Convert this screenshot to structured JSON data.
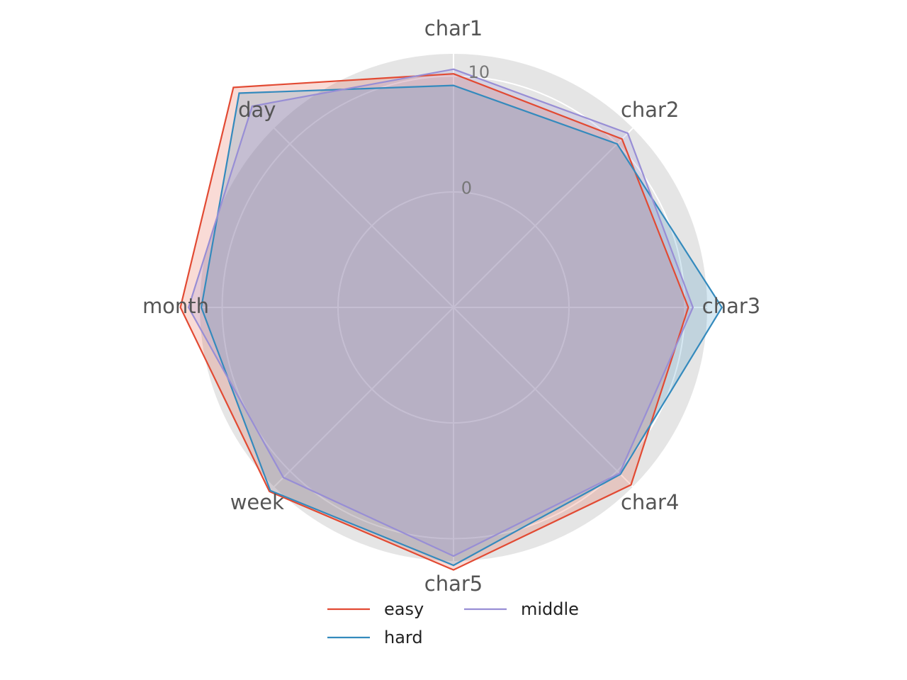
{
  "chart_data": {
    "type": "radar",
    "title": "",
    "categories": [
      "char1",
      "char2",
      "char3",
      "char4",
      "char5",
      "week",
      "month",
      "day"
    ],
    "radial_ticks": [
      0,
      10,
      20
    ],
    "rlim": [
      0,
      20
    ],
    "grid": true,
    "legend": {
      "placement": "bottom-center",
      "columns": 2
    },
    "series": [
      {
        "name": "easy",
        "color": "#E24A33",
        "values": [
          10.2,
          10.6,
          10.3,
          11.7,
          12.7,
          12.5,
          13.6,
          16.9
        ]
      },
      {
        "name": "hard",
        "color": "#348ABD",
        "values": [
          9.2,
          10.0,
          13.2,
          10.4,
          12.3,
          12.4,
          11.8,
          16.2
        ]
      },
      {
        "name": "middle",
        "color": "#988ED5",
        "values": [
          10.6,
          11.3,
          10.7,
          10.3,
          11.5,
          10.8,
          12.9,
          14.6
        ]
      }
    ]
  }
}
